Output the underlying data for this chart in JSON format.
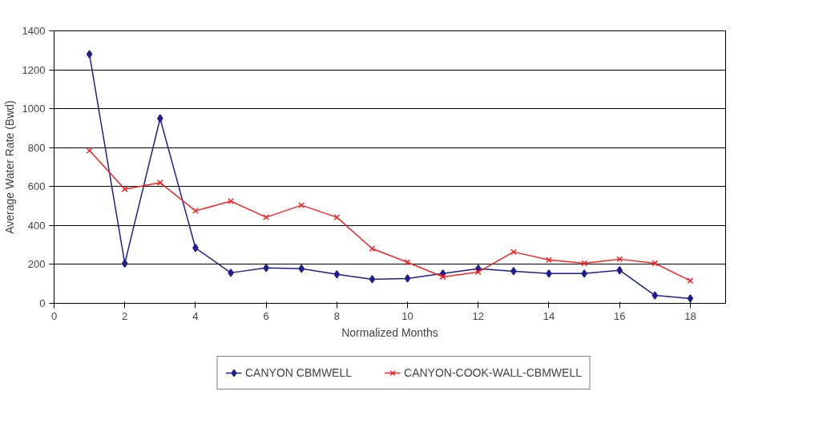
{
  "chart_data": {
    "type": "line",
    "xlabel": "Normalized Months",
    "ylabel": "Average Water Rate (Bwd)",
    "x": [
      1,
      2,
      3,
      4,
      5,
      6,
      7,
      8,
      9,
      10,
      11,
      12,
      13,
      14,
      15,
      16,
      17,
      18
    ],
    "series": [
      {
        "name": "CANYON CBMWELL",
        "color": "#1f1f8f",
        "marker": "diamond",
        "values": [
          1280,
          205,
          950,
          285,
          157,
          182,
          178,
          149,
          124,
          128,
          153,
          178,
          165,
          153,
          153,
          170,
          41,
          25
        ]
      },
      {
        "name": "CANYON-COOK-WALL-CBMWELL",
        "color": "#ff2020",
        "marker": "cross",
        "values": [
          785,
          587,
          620,
          475,
          525,
          442,
          504,
          442,
          281,
          211,
          136,
          161,
          264,
          223,
          206,
          227,
          206,
          116
        ]
      }
    ],
    "xlim": [
      0,
      19
    ],
    "xticks": [
      0,
      2,
      4,
      6,
      8,
      10,
      12,
      14,
      16,
      18
    ],
    "ylim": [
      0,
      1400
    ],
    "yticks": [
      0,
      200,
      400,
      600,
      800,
      1000,
      1200,
      1400
    ],
    "grid": "y",
    "legend": "bottom"
  }
}
